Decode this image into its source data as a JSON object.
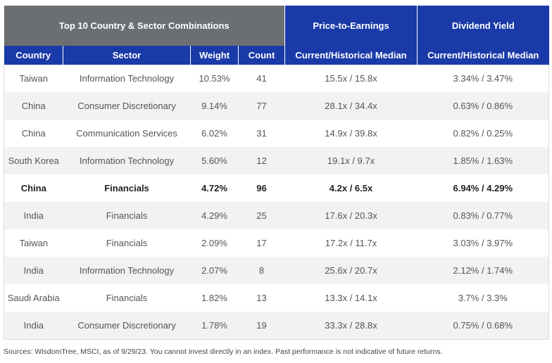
{
  "header": {
    "groups": [
      "Top 10 Country & Sector Combinations",
      "Price-to-Earnings",
      "Dividend Yield"
    ],
    "columns": [
      "Country",
      "Sector",
      "Weight",
      "Count",
      "Current/Historical Median",
      "Current/Historical Median"
    ]
  },
  "table": {
    "rows": [
      [
        "Taiwan",
        "Information Technology",
        "10.53%",
        "41",
        "15.5x / 15.8x",
        "3.34% / 3.47%"
      ],
      [
        "China",
        "Consumer Discretionary",
        "9.14%",
        "77",
        "28.1x / 34.4x",
        "0.63% / 0.86%"
      ],
      [
        "China",
        "Communication Services",
        "6.02%",
        "31",
        "14.9x / 39.8x",
        "0.82% / 0.25%"
      ],
      [
        "South Korea",
        "Information Technology",
        "5.60%",
        "12",
        "19.1x / 9.7x",
        "1.85% / 1.63%"
      ],
      [
        "China",
        "Financials",
        "4.72%",
        "96",
        "4.2x / 6.5x",
        "6.94% / 4.29%"
      ],
      [
        "India",
        "Financials",
        "4.29%",
        "25",
        "17.6x / 20.3x",
        "0.83% / 0.77%"
      ],
      [
        "Taiwan",
        "Financials",
        "2.09%",
        "17",
        "17.2x / 11.7x",
        "3.03% / 3.97%"
      ],
      [
        "India",
        "Information Technology",
        "2.07%",
        "8",
        "25.6x / 20.7x",
        "2.12% / 1.74%"
      ],
      [
        "Saudi Arabia",
        "Financials",
        "1.82%",
        "13",
        "13.3x / 14.1x",
        "3.7% / 3.3%"
      ],
      [
        "India",
        "Consumer Discretionary",
        "1.78%",
        "19",
        "33.3x / 28.8x",
        "0.75% / 0.68%"
      ]
    ]
  },
  "footer": "Sources: WisdomTree, MSCI, as of 9/29/23. You cannot invest directly in an index. Past performance is not indicative of future returns."
}
